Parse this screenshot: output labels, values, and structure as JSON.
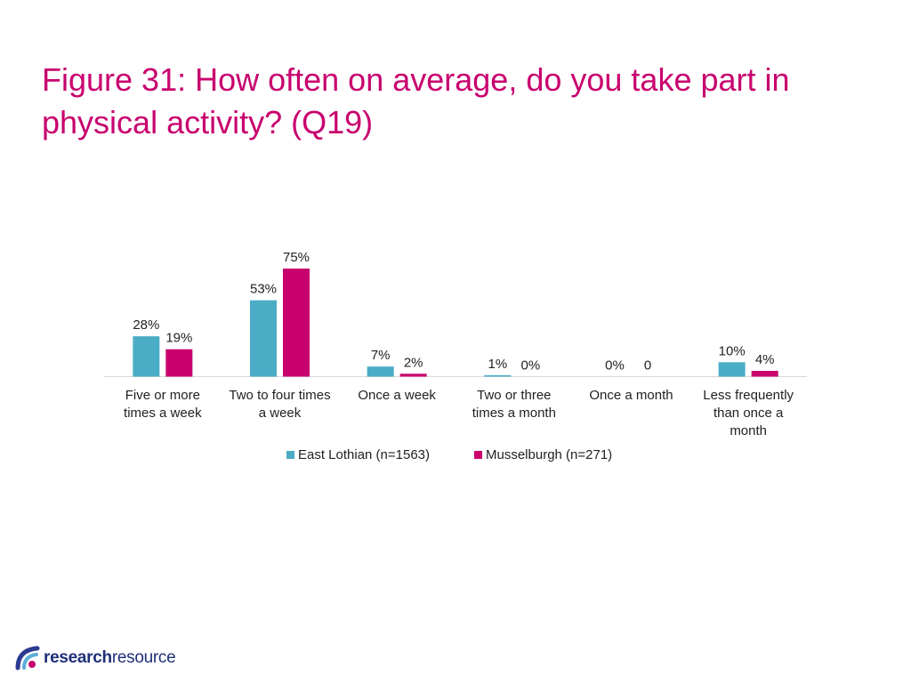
{
  "title": "Figure 31: How often on average, do you take part in physical activity? (Q19)",
  "chart_data": {
    "type": "bar",
    "categories": [
      [
        "Five or more",
        "times a week"
      ],
      [
        "Two to four times",
        "a week"
      ],
      [
        "Once a week"
      ],
      [
        "Two or three",
        "times a month"
      ],
      [
        "Once a month"
      ],
      [
        "Less frequently",
        "than once a",
        "month"
      ]
    ],
    "series": [
      {
        "name": "East Lothian (n=1563)",
        "color": "#4bacc6",
        "values": [
          28,
          53,
          7,
          1,
          0,
          10
        ],
        "labels": [
          "28%",
          "53%",
          "7%",
          "1%",
          "0%",
          "10%"
        ]
      },
      {
        "name": "Musselburgh (n=271)",
        "color": "#c8006e",
        "values": [
          19,
          75,
          2,
          0,
          0,
          4
        ],
        "labels": [
          "19%",
          "75%",
          "2%",
          "0%",
          "0",
          "4%"
        ]
      }
    ],
    "ylim": [
      0,
      75
    ],
    "xlabel": "",
    "ylabel": "",
    "grid": false,
    "legend": "bottom"
  },
  "logo": {
    "part1": "research",
    "part2": "resource"
  }
}
